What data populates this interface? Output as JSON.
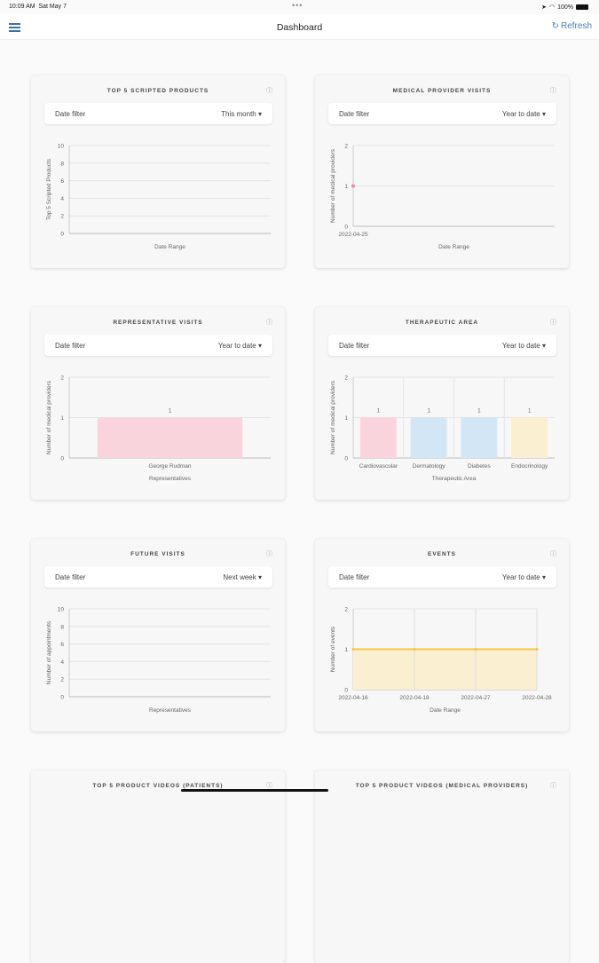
{
  "status": {
    "time": "10:09 AM",
    "date": "Sat May 7",
    "battery": "100%"
  },
  "nav": {
    "title": "Dashboard",
    "refresh": "Refresh"
  },
  "filter_label": "Date filter",
  "cards": [
    {
      "title": "TOP 5 SCRIPTED PRODUCTS",
      "filter": "This month",
      "chart": {
        "type": "bar",
        "ylabel": "Top 5 Scripted Products",
        "xlabel": "Date Range",
        "ylim": [
          0,
          10
        ],
        "yticks": [
          0,
          2,
          4,
          6,
          8,
          10
        ],
        "categories": [],
        "values": [],
        "colors": []
      }
    },
    {
      "title": "MEDICAL PROVIDER VISITS",
      "filter": "Year to date",
      "chart": {
        "type": "line",
        "ylabel": "Number of medical providers",
        "xlabel": "Date Range",
        "ylim": [
          0,
          2
        ],
        "yticks": [
          0,
          1,
          2
        ],
        "categories": [
          "2022-04-25"
        ],
        "values": [
          1
        ],
        "colors": [
          "#f08aa0"
        ]
      }
    },
    {
      "title": "REPRESENTATIVE VISITS",
      "filter": "Year to date",
      "chart": {
        "type": "bar",
        "ylabel": "Number of medical providers",
        "xlabel": "Representatives",
        "ylim": [
          0,
          2
        ],
        "yticks": [
          0,
          1,
          2
        ],
        "categories": [
          "George Rudman"
        ],
        "values": [
          1
        ],
        "colors": [
          "#fad4dc"
        ]
      }
    },
    {
      "title": "THERAPEUTIC AREA",
      "filter": "Year to date",
      "chart": {
        "type": "bar",
        "ylabel": "Number of medical providers",
        "xlabel": "Therapeutic Area",
        "ylim": [
          0,
          2
        ],
        "yticks": [
          0,
          1,
          2
        ],
        "categories": [
          "Cardiovascular",
          "Dermatology",
          "Diabetes",
          "Endocrinology"
        ],
        "values": [
          1,
          1,
          1,
          1
        ],
        "colors": [
          "#fad4dc",
          "#d3e6f6",
          "#d3e6f6",
          "#fbefd2"
        ]
      }
    },
    {
      "title": "FUTURE VISITS",
      "filter": "Next week",
      "chart": {
        "type": "bar",
        "ylabel": "Number of appointments",
        "xlabel": "Representatives",
        "ylim": [
          0,
          10
        ],
        "yticks": [
          0,
          2,
          4,
          6,
          8,
          10
        ],
        "categories": [],
        "values": [],
        "colors": []
      }
    },
    {
      "title": "EVENTS",
      "filter": "Year to date",
      "chart": {
        "type": "area",
        "ylabel": "Number of events",
        "xlabel": "Date Range",
        "ylim": [
          0,
          2
        ],
        "yticks": [
          0,
          1,
          2
        ],
        "categories": [
          "2022-04-16",
          "2022-04-18",
          "2022-04-27",
          "2022-04-28"
        ],
        "values": [
          1,
          1,
          1,
          1
        ],
        "colors": [
          "#f5c542"
        ]
      }
    },
    {
      "title": "TOP 5 PRODUCT VIDEOS (PATIENTS)",
      "filter": "",
      "chart": null
    },
    {
      "title": "TOP 5 PRODUCT VIDEOS (MEDICAL PROVIDERS)",
      "filter": "",
      "chart": null
    }
  ]
}
